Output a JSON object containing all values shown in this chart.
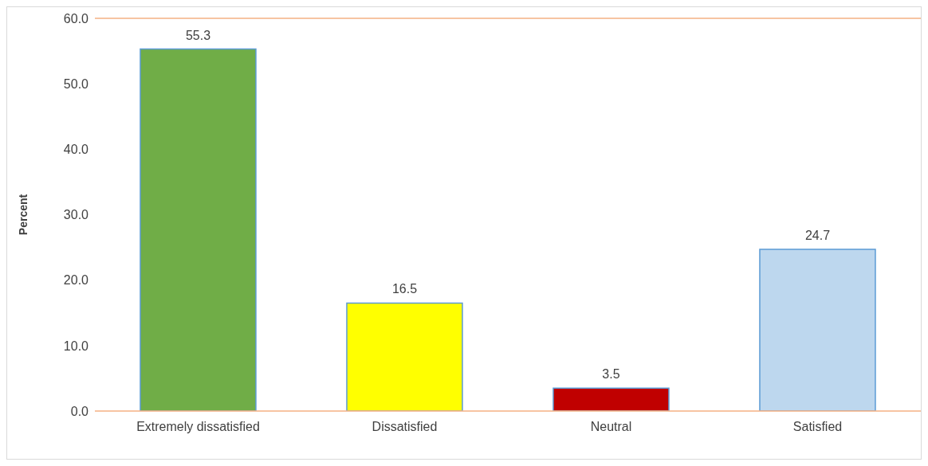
{
  "chart_data": {
    "type": "bar",
    "ylabel": "Percent",
    "categories": [
      "Extremely dissatisfied",
      "Dissatisfied",
      "Neutral",
      "Satisfied"
    ],
    "values": [
      55.3,
      16.5,
      3.5,
      24.7
    ],
    "colors": [
      "#70ad47",
      "#ffff00",
      "#c00000",
      "#bdd7ee"
    ],
    "ylim": [
      0,
      60
    ],
    "yticks": [
      {
        "value": 0,
        "label": "0.0"
      },
      {
        "value": 10,
        "label": "10.0"
      },
      {
        "value": 20,
        "label": "20.0"
      },
      {
        "value": 30,
        "label": "30.0"
      },
      {
        "value": 40,
        "label": "40.0"
      },
      {
        "value": 50,
        "label": "50.0"
      },
      {
        "value": 60,
        "label": "60.0"
      }
    ],
    "data_labels": true,
    "grid": false,
    "legend": false
  }
}
